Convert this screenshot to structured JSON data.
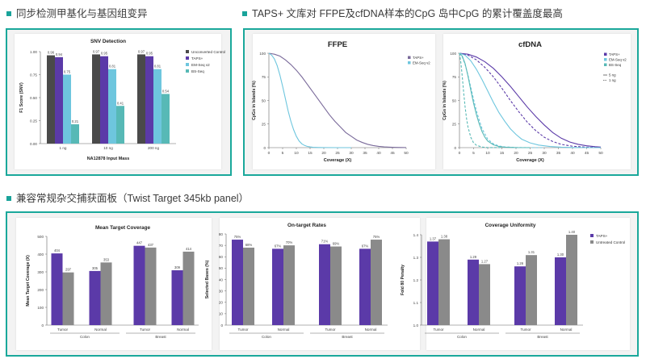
{
  "section1": {
    "title": "同步检测甲基化与基因组变异"
  },
  "section2": {
    "title": "TAPS+ 文库对 FFPE及cfDNA样本的CpG 岛中CpG 的累计覆盖度最高"
  },
  "section3": {
    "title": "兼容常规杂交捕获面板（Twist Target 345kb panel）"
  },
  "colors": {
    "accent": "#1aa89b",
    "taps": "#5b3aa8",
    "em": "#6ec6de",
    "bs": "#57b9b6",
    "grey": "#8a8a8a",
    "uninv": "#4a4a4a"
  },
  "chart_data": [
    {
      "type": "bar",
      "title": "SNV Detection",
      "xlabel": "NA12878 Input Mass",
      "ylabel": "F1 Score (SNV)",
      "categories": [
        "1 ng",
        "10 ng",
        "200 ng"
      ],
      "ylim": [
        0,
        1.0
      ],
      "yticks": [
        "0.00",
        "0.25",
        "0.50",
        "0.75",
        "1.00"
      ],
      "series": [
        {
          "name": "Unconverted Control",
          "values": [
            0.96,
            0.97,
            0.97
          ],
          "labels": [
            "0.96",
            "0.97",
            "0.97"
          ],
          "color": "#4a4a4a"
        },
        {
          "name": "TAPS+",
          "values": [
            0.94,
            0.95,
            0.95
          ],
          "labels": [
            "0.94",
            "0.95",
            "0.95"
          ],
          "color": "#5b3aa8"
        },
        {
          "name": "EM-Seq v2",
          "values": [
            0.75,
            0.81,
            0.81
          ],
          "labels": [
            "0.75",
            "0.81",
            "0.81"
          ],
          "color": "#6ec6de"
        },
        {
          "name": "BS-Seq",
          "values": [
            0.21,
            0.41,
            0.54
          ],
          "labels": [
            "0.21",
            "0.41",
            "0.54"
          ],
          "color": "#57b9b6"
        }
      ],
      "legend": "right"
    },
    {
      "type": "line",
      "title": "FFPE",
      "xlabel": "Coverage (X)",
      "ylabel": "CpGs in Islands (%)",
      "xlim": [
        0,
        50
      ],
      "ylim": [
        0,
        100
      ],
      "xticks": [
        "0",
        "5",
        "10",
        "15",
        "20",
        "25",
        "30",
        "35",
        "40",
        "45",
        "50"
      ],
      "yticks": [
        "0",
        "25",
        "50",
        "75",
        "100"
      ],
      "series": [
        {
          "name": "TAPS+",
          "color": "#7a6a9a",
          "dash": false,
          "x": [
            0,
            2,
            4,
            6,
            8,
            10,
            12,
            14,
            16,
            18,
            20,
            22,
            24,
            26,
            28,
            30,
            32,
            34,
            36,
            38,
            40,
            42,
            44,
            46,
            48,
            50
          ],
          "y": [
            100,
            99,
            97,
            93,
            88,
            82,
            75,
            67,
            59,
            51,
            43,
            35,
            28,
            22,
            16,
            12,
            8,
            5.5,
            3.5,
            2.2,
            1.3,
            0.8,
            0.5,
            0.3,
            0.2,
            0.1
          ]
        },
        {
          "name": "EM-Seq v2",
          "color": "#6ec6de",
          "dash": false,
          "x": [
            0,
            1,
            2,
            3,
            4,
            5,
            6,
            7,
            8,
            9,
            10,
            11,
            12,
            13,
            14,
            15,
            16,
            18,
            20,
            25,
            30
          ],
          "y": [
            100,
            98,
            94,
            87,
            77,
            65,
            52,
            39,
            28,
            19,
            12,
            7,
            4,
            2.3,
            1.3,
            0.8,
            0.4,
            0.2,
            0.1,
            0,
            0
          ]
        }
      ],
      "legend": "top-right"
    },
    {
      "type": "line",
      "title": "cfDNA",
      "xlabel": "Coverage (X)",
      "ylabel": "CpGs in Islands (%)",
      "xlim": [
        0,
        50
      ],
      "ylim": [
        0,
        100
      ],
      "xticks": [
        "0",
        "5",
        "10",
        "15",
        "20",
        "25",
        "30",
        "35",
        "40",
        "45",
        "50"
      ],
      "yticks": [
        "0",
        "25",
        "50",
        "75",
        "100"
      ],
      "legend_series": [
        {
          "name": "TAPS+",
          "color": "#5b3aa8"
        },
        {
          "name": "EM-Seq v2",
          "color": "#6ec6de"
        },
        {
          "name": "BS-Seq",
          "color": "#57b9b6"
        }
      ],
      "legend_styles": [
        {
          "name": "5 ng",
          "dash": false
        },
        {
          "name": "1 ng",
          "dash": true
        }
      ],
      "series": [
        {
          "color": "#5b3aa8",
          "dash": false,
          "x": [
            0,
            3,
            6,
            9,
            12,
            15,
            18,
            21,
            24,
            27,
            30,
            33,
            36,
            39,
            42,
            45,
            48,
            50
          ],
          "y": [
            100,
            99,
            96,
            91,
            84,
            75,
            65,
            54,
            43,
            33,
            24,
            16,
            10,
            6,
            3.5,
            2,
            1,
            0.6
          ]
        },
        {
          "color": "#5b3aa8",
          "dash": true,
          "x": [
            0,
            3,
            6,
            9,
            12,
            15,
            18,
            21,
            24,
            27,
            30,
            33,
            36,
            40,
            45,
            50
          ],
          "y": [
            100,
            98,
            93,
            85,
            75,
            63,
            50,
            38,
            27,
            18,
            11,
            6.5,
            3.5,
            1.5,
            0.5,
            0.2
          ]
        },
        {
          "color": "#6ec6de",
          "dash": false,
          "x": [
            0,
            2,
            4,
            6,
            8,
            10,
            12,
            14,
            16,
            18,
            20,
            22,
            25,
            28,
            32,
            36,
            40,
            45,
            50
          ],
          "y": [
            100,
            98,
            92,
            83,
            72,
            60,
            48,
            37,
            28,
            20,
            14,
            9,
            5,
            2.7,
            1.2,
            0.5,
            0.2,
            0.1,
            0
          ]
        },
        {
          "color": "#6ec6de",
          "dash": true,
          "x": [
            0,
            1,
            2,
            3,
            4,
            5,
            6,
            7,
            8,
            10,
            12,
            14,
            16,
            20,
            25,
            30
          ],
          "y": [
            100,
            96,
            88,
            77,
            64,
            51,
            39,
            29,
            20,
            9,
            4,
            1.7,
            0.8,
            0.2,
            0,
            0
          ]
        },
        {
          "color": "#57b9b6",
          "dash": false,
          "x": [
            0,
            1,
            2,
            3,
            4,
            5,
            6,
            7,
            8,
            9,
            10,
            12,
            14,
            16,
            20,
            25
          ],
          "y": [
            100,
            97,
            89,
            76,
            61,
            47,
            35,
            25,
            17,
            11,
            7,
            3,
            1.2,
            0.5,
            0.1,
            0
          ]
        },
        {
          "color": "#57b9b6",
          "dash": true,
          "x": [
            0,
            0.5,
            1,
            1.5,
            2,
            2.5,
            3,
            4,
            5,
            6,
            8,
            10,
            15
          ],
          "y": [
            100,
            90,
            75,
            58,
            43,
            31,
            22,
            11,
            5,
            2.5,
            0.6,
            0.1,
            0
          ]
        }
      ],
      "legend": "top-right"
    },
    {
      "type": "bar",
      "title": "Mean Target Coverage",
      "ylabel": "Mean Target Coverage (X)",
      "ylim": [
        0,
        500
      ],
      "yticks": [
        "0",
        "100",
        "200",
        "300",
        "400",
        "500"
      ],
      "categories": [
        "Tumor",
        "Normal",
        "Tumor",
        "Normal"
      ],
      "groups": [
        "Colon",
        "Breast"
      ],
      "series": [
        {
          "name": "TAPS+",
          "values": [
            404,
            305,
            447,
            309
          ],
          "labels": [
            "404",
            "305",
            "447",
            "309"
          ],
          "color": "#5b3aa8"
        },
        {
          "name": "Untreated Control",
          "values": [
            297,
            353,
            437,
            414
          ],
          "labels": [
            "297",
            "353",
            "437",
            "414"
          ],
          "color": "#8a8a8a"
        }
      ]
    },
    {
      "type": "bar",
      "title": "On-target Rates",
      "ylabel": "Selected Bases (%)",
      "ylim": [
        0,
        80
      ],
      "yticks": [
        "0",
        "10",
        "20",
        "30",
        "40",
        "50",
        "60",
        "70",
        "80"
      ],
      "categories": [
        "Tumor",
        "Normal",
        "Tumor",
        "Normal"
      ],
      "groups": [
        "Colon",
        "Breast"
      ],
      "series": [
        {
          "name": "TAPS+",
          "values": [
            75,
            67,
            71,
            67
          ],
          "labels": [
            "75%",
            "67%",
            "71%",
            "67%"
          ],
          "color": "#5b3aa8"
        },
        {
          "name": "Untreated Control",
          "values": [
            68,
            70,
            69,
            75
          ],
          "labels": [
            "68%",
            "70%",
            "69%",
            "75%"
          ],
          "color": "#8a8a8a"
        }
      ]
    },
    {
      "type": "bar",
      "title": "Coverage Uniformity",
      "ylabel": "Fold 80 Penalty",
      "ylim": [
        1.0,
        1.4
      ],
      "yticks": [
        "1.0",
        "1.1",
        "1.2",
        "1.3",
        "1.4"
      ],
      "categories": [
        "Tumor",
        "Normal",
        "Tumor",
        "Normal"
      ],
      "groups": [
        "Colon",
        "Breast"
      ],
      "series": [
        {
          "name": "TAPS+",
          "values": [
            1.37,
            1.29,
            1.26,
            1.3
          ],
          "labels": [
            "1.37",
            "1.29",
            "1.26",
            "1.30"
          ],
          "color": "#5b3aa8"
        },
        {
          "name": "Untreated Control",
          "values": [
            1.38,
            1.27,
            1.31,
            1.4
          ],
          "labels": [
            "1.38",
            "1.27",
            "1.31",
            "1.40"
          ],
          "color": "#8a8a8a"
        }
      ],
      "legend": "top-right"
    }
  ]
}
